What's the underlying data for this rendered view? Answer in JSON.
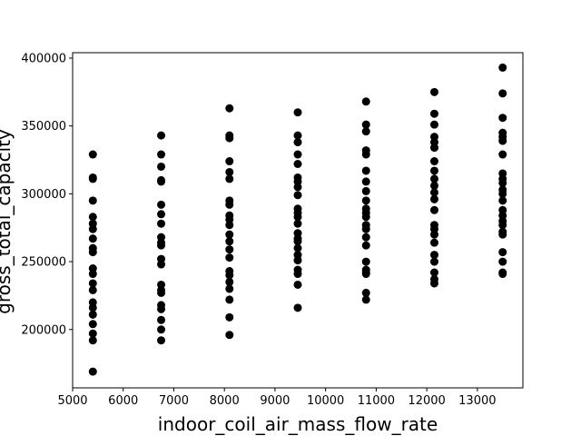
{
  "chart_data": {
    "type": "scatter",
    "title": "",
    "xlabel": "indoor_coil_air_mass_flow_rate",
    "ylabel": "gross_total_capacity",
    "xlim": [
      5000,
      13900
    ],
    "ylim": [
      157000,
      404000
    ],
    "xticks": [
      5000,
      6000,
      7000,
      8000,
      9000,
      10000,
      11000,
      12000,
      13000
    ],
    "yticks": [
      200000,
      250000,
      300000,
      350000,
      400000
    ],
    "grid": false,
    "marker_color": "#000000",
    "series": [
      {
        "points": [
          [
            5400,
            329000
          ],
          [
            5400,
            312000
          ],
          [
            5400,
            311000
          ],
          [
            5400,
            295000
          ],
          [
            5400,
            283000
          ],
          [
            5400,
            278000
          ],
          [
            5400,
            274000
          ],
          [
            5400,
            267000
          ],
          [
            5400,
            260000
          ],
          [
            5400,
            257000
          ],
          [
            5400,
            245000
          ],
          [
            5400,
            241000
          ],
          [
            5400,
            234000
          ],
          [
            5400,
            229000
          ],
          [
            5400,
            220000
          ],
          [
            5400,
            216000
          ],
          [
            5400,
            211000
          ],
          [
            5400,
            204000
          ],
          [
            5400,
            197000
          ],
          [
            5400,
            192000
          ],
          [
            5400,
            169000
          ],
          [
            6750,
            343000
          ],
          [
            6750,
            329000
          ],
          [
            6750,
            320000
          ],
          [
            6750,
            310000
          ],
          [
            6750,
            309000
          ],
          [
            6750,
            292000
          ],
          [
            6750,
            285000
          ],
          [
            6750,
            278000
          ],
          [
            6750,
            268000
          ],
          [
            6750,
            264000
          ],
          [
            6750,
            262000
          ],
          [
            6750,
            252000
          ],
          [
            6750,
            248000
          ],
          [
            6750,
            233000
          ],
          [
            6750,
            229000
          ],
          [
            6750,
            227000
          ],
          [
            6750,
            218000
          ],
          [
            6750,
            215000
          ],
          [
            6750,
            207000
          ],
          [
            6750,
            200000
          ],
          [
            6750,
            192000
          ],
          [
            8100,
            363000
          ],
          [
            8100,
            343000
          ],
          [
            8100,
            341000
          ],
          [
            8100,
            324000
          ],
          [
            8100,
            316000
          ],
          [
            8100,
            311000
          ],
          [
            8100,
            295000
          ],
          [
            8100,
            292000
          ],
          [
            8100,
            284000
          ],
          [
            8100,
            281000
          ],
          [
            8100,
            277000
          ],
          [
            8100,
            270000
          ],
          [
            8100,
            265000
          ],
          [
            8100,
            259000
          ],
          [
            8100,
            253000
          ],
          [
            8100,
            243000
          ],
          [
            8100,
            240000
          ],
          [
            8100,
            235000
          ],
          [
            8100,
            230000
          ],
          [
            8100,
            222000
          ],
          [
            8100,
            209000
          ],
          [
            8100,
            196000
          ],
          [
            9450,
            360000
          ],
          [
            9450,
            343000
          ],
          [
            9450,
            338000
          ],
          [
            9450,
            329000
          ],
          [
            9450,
            322000
          ],
          [
            9450,
            312000
          ],
          [
            9450,
            309000
          ],
          [
            9450,
            305000
          ],
          [
            9450,
            299000
          ],
          [
            9450,
            289000
          ],
          [
            9450,
            286000
          ],
          [
            9450,
            283000
          ],
          [
            9450,
            278000
          ],
          [
            9450,
            271000
          ],
          [
            9450,
            267000
          ],
          [
            9450,
            265000
          ],
          [
            9450,
            260000
          ],
          [
            9450,
            255000
          ],
          [
            9450,
            251000
          ],
          [
            9450,
            244000
          ],
          [
            9450,
            241000
          ],
          [
            9450,
            233000
          ],
          [
            9450,
            216000
          ],
          [
            10800,
            368000
          ],
          [
            10800,
            351000
          ],
          [
            10800,
            346000
          ],
          [
            10800,
            332000
          ],
          [
            10800,
            329000
          ],
          [
            10800,
            317000
          ],
          [
            10800,
            309000
          ],
          [
            10800,
            302000
          ],
          [
            10800,
            295000
          ],
          [
            10800,
            289000
          ],
          [
            10800,
            286000
          ],
          [
            10800,
            283000
          ],
          [
            10800,
            277000
          ],
          [
            10800,
            274000
          ],
          [
            10800,
            268000
          ],
          [
            10800,
            262000
          ],
          [
            10800,
            250000
          ],
          [
            10800,
            244000
          ],
          [
            10800,
            242000
          ],
          [
            10800,
            241000
          ],
          [
            10800,
            227000
          ],
          [
            10800,
            222000
          ],
          [
            12150,
            375000
          ],
          [
            12150,
            359000
          ],
          [
            12150,
            351000
          ],
          [
            12150,
            342000
          ],
          [
            12150,
            338000
          ],
          [
            12150,
            334000
          ],
          [
            12150,
            324000
          ],
          [
            12150,
            317000
          ],
          [
            12150,
            311000
          ],
          [
            12150,
            306000
          ],
          [
            12150,
            301000
          ],
          [
            12150,
            296000
          ],
          [
            12150,
            288000
          ],
          [
            12150,
            277000
          ],
          [
            12150,
            274000
          ],
          [
            12150,
            270000
          ],
          [
            12150,
            264000
          ],
          [
            12150,
            255000
          ],
          [
            12150,
            250000
          ],
          [
            12150,
            242000
          ],
          [
            12150,
            237000
          ],
          [
            12150,
            234000
          ],
          [
            13500,
            393000
          ],
          [
            13500,
            374000
          ],
          [
            13500,
            356000
          ],
          [
            13500,
            345000
          ],
          [
            13500,
            342000
          ],
          [
            13500,
            339000
          ],
          [
            13500,
            329000
          ],
          [
            13500,
            315000
          ],
          [
            13500,
            311000
          ],
          [
            13500,
            308000
          ],
          [
            13500,
            303000
          ],
          [
            13500,
            300000
          ],
          [
            13500,
            295000
          ],
          [
            13500,
            288000
          ],
          [
            13500,
            284000
          ],
          [
            13500,
            280000
          ],
          [
            13500,
            277000
          ],
          [
            13500,
            272000
          ],
          [
            13500,
            270000
          ],
          [
            13500,
            257000
          ],
          [
            13500,
            250000
          ],
          [
            13500,
            242000
          ],
          [
            13500,
            241000
          ]
        ]
      }
    ]
  }
}
